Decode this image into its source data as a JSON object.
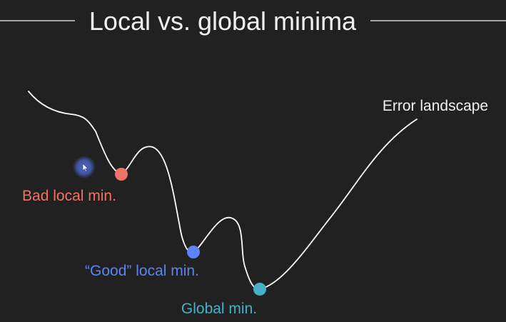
{
  "slide": {
    "title": "Local vs. global minima",
    "background_color": "#212121",
    "title_color": "#f0f0f0",
    "rule_color": "#cfcfcf"
  },
  "curve": {
    "label": "Error landscape",
    "color": "#ffffff"
  },
  "minima": {
    "bad": {
      "label": "Bad local min.",
      "color": "#ef7267"
    },
    "good": {
      "label": "“Good” local min.",
      "color": "#5b84f7"
    },
    "global": {
      "label": "Global min.",
      "color": "#45b1c4"
    }
  },
  "cursor": {
    "icon": "mouse-pointer-icon",
    "highlight_color": "#4a67c8"
  }
}
